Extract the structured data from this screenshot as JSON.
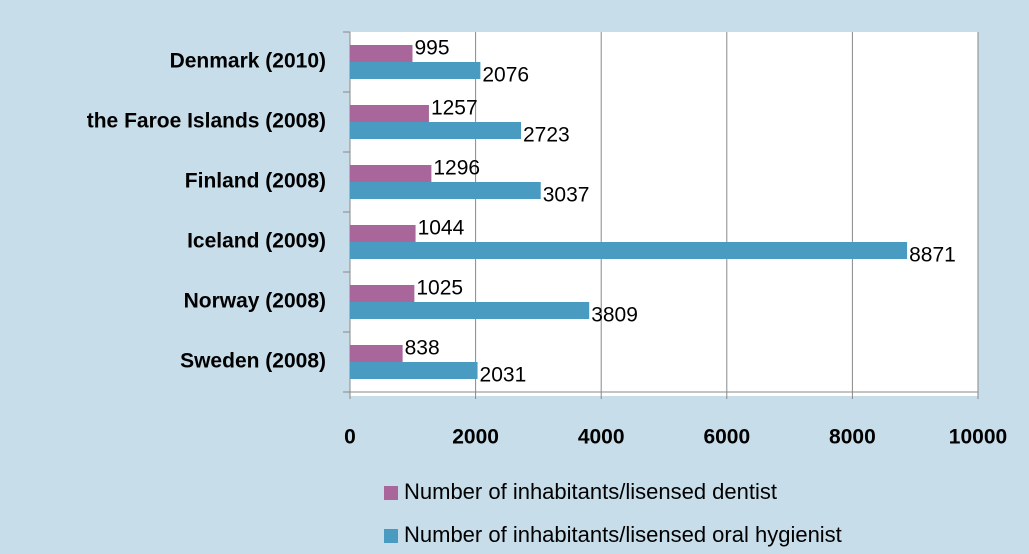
{
  "chart_data": {
    "type": "hbar",
    "categories": [
      "Denmark (2010)",
      "the Faroe Islands (2008)",
      "Finland (2008)",
      "Iceland (2009)",
      "Norway (2008)",
      "Sweden (2008)"
    ],
    "series": [
      {
        "name": "Number of inhabitants/lisensed dentist",
        "color": "#a8669a",
        "values": [
          995,
          1257,
          1296,
          1044,
          1025,
          838
        ]
      },
      {
        "name": "Number of inhabitants/lisensed oral hygienist",
        "color": "#4a9bc1",
        "values": [
          2076,
          2723,
          3037,
          8871,
          3809,
          2031
        ]
      }
    ],
    "xlim": [
      0,
      10000
    ],
    "xticks": [
      0,
      2000,
      4000,
      6000,
      8000,
      10000
    ],
    "grid": true,
    "legend": "bottom"
  }
}
